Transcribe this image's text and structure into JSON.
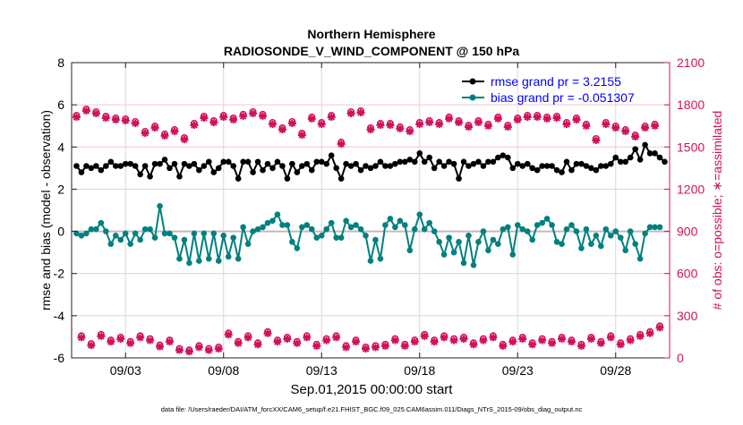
{
  "chart_data": {
    "type": "line",
    "title": "Northern Hemisphere",
    "subtitle": "RADIOSONDE_V_WIND_COMPONENT @ 150 hPa",
    "xlabel": "Sep.01,2015 00:00:00 start",
    "ylabel": "rmse and bias (model - observation)",
    "y2label": "# of obs: o=possible; ∗=assimilated",
    "footer": "data file: /Users/raeder/DAI/ATM_forcXX/CAM6_setup/f.e21.FHIST_BGC.f09_025.CAM6assim.011/Diags_NTrS_2015-09/obs_diag_output.nc",
    "x_units": "days since Aug.31,2015",
    "xlim": [
      0.25,
      30.75
    ],
    "ylim": [
      -6,
      8
    ],
    "y2lim": [
      0,
      2100
    ],
    "grid": true,
    "legend_position": "top-right",
    "xticks": [
      {
        "value": 3,
        "label": "09/03"
      },
      {
        "value": 8,
        "label": "09/08"
      },
      {
        "value": 13,
        "label": "09/13"
      },
      {
        "value": 18,
        "label": "09/18"
      },
      {
        "value": 23,
        "label": "09/23"
      },
      {
        "value": 28,
        "label": "09/28"
      }
    ],
    "yticks": [
      "-6",
      "-4",
      "-2",
      "0",
      "2",
      "4",
      "6",
      "8"
    ],
    "y2ticks": [
      "0",
      "300",
      "600",
      "900",
      "1200",
      "1500",
      "1800",
      "2100"
    ],
    "x_start": 0.5,
    "x_step": 0.25,
    "series": [
      {
        "name": "rmse grand pr = 3.2155",
        "color": "#000000",
        "values": [
          3.1,
          2.8,
          3.1,
          3.0,
          3.1,
          2.9,
          3.1,
          3.3,
          3.1,
          3.1,
          3.2,
          3.2,
          3.1,
          2.7,
          3.1,
          2.6,
          3.2,
          3.2,
          3.4,
          3.0,
          3.2,
          2.6,
          3.2,
          3.1,
          3.2,
          2.9,
          3.1,
          3.3,
          2.8,
          3.0,
          3.3,
          3.3,
          3.1,
          2.5,
          3.3,
          3.3,
          2.8,
          3.3,
          2.9,
          3.2,
          3.0,
          3.3,
          3.1,
          2.5,
          3.2,
          2.8,
          3.1,
          3.2,
          2.9,
          3.3,
          3.3,
          3.2,
          3.6,
          3.0,
          2.5,
          3.2,
          3.1,
          3.2,
          2.9,
          3.1,
          3.0,
          3.1,
          3.3,
          3.1,
          3.1,
          3.2,
          3.3,
          3.3,
          3.4,
          3.3,
          3.7,
          3.3,
          3.5,
          3.0,
          3.3,
          3.1,
          3.3,
          3.2,
          2.5,
          3.3,
          3.1,
          3.2,
          3.3,
          3.1,
          3.3,
          3.3,
          3.5,
          3.6,
          3.5,
          3.0,
          3.2,
          3.1,
          3.2,
          3.0,
          2.9,
          3.1,
          3.1,
          3.1,
          2.9,
          2.8,
          3.3,
          2.9,
          3.2,
          3.2,
          3.1,
          3.0,
          2.9,
          3.1,
          3.1,
          3.2,
          3.5,
          3.3,
          3.3,
          3.5,
          3.9,
          3.4,
          4.1,
          3.7,
          3.7,
          3.5,
          3.3
        ]
      },
      {
        "name": "bias grand pr = -0.051307",
        "color": "#008080",
        "values": [
          -0.1,
          -0.2,
          -0.1,
          0.1,
          0.1,
          0.4,
          0.0,
          -0.6,
          -0.2,
          -0.4,
          -0.1,
          -0.6,
          -0.1,
          -0.4,
          0.1,
          0.1,
          -0.3,
          1.2,
          -0.1,
          -0.1,
          -0.3,
          -1.3,
          -0.4,
          -1.5,
          -0.1,
          -1.4,
          -0.1,
          -1.3,
          -0.1,
          -1.4,
          -0.2,
          -1.2,
          -0.3,
          -1.3,
          0.2,
          -0.6,
          0.0,
          0.1,
          0.2,
          0.4,
          0.5,
          0.8,
          0.3,
          0.3,
          -0.5,
          -0.8,
          0.2,
          0.3,
          0.1,
          -0.3,
          -0.2,
          0.1,
          0.4,
          -0.3,
          -0.3,
          0.5,
          0.2,
          0.3,
          0.1,
          -0.2,
          -1.4,
          -0.4,
          -1.3,
          0.3,
          0.6,
          0.2,
          0.5,
          0.3,
          -0.9,
          0.1,
          0.8,
          0.1,
          0.4,
          0.0,
          -0.5,
          -1.1,
          -0.3,
          -1.0,
          -0.5,
          -1.5,
          -0.2,
          -1.6,
          -0.5,
          0.0,
          -0.9,
          -0.4,
          -0.6,
          0.1,
          0.2,
          -1.1,
          0.3,
          0.1,
          0.0,
          -0.4,
          0.3,
          0.4,
          0.6,
          0.3,
          -0.5,
          -0.6,
          0.1,
          0.3,
          0.0,
          -0.8,
          0.1,
          -0.6,
          -0.2,
          -0.7,
          0.1,
          -0.2,
          0.0,
          -0.3,
          -0.9,
          0.0,
          -0.6,
          -1.3,
          -0.1,
          0.2,
          0.2,
          0.2
        ]
      }
    ],
    "obs_counts": {
      "color": "#d2105a",
      "x_start_high": 0.5,
      "x_start_low": 0.75,
      "x_step": 0.5,
      "high": [
        1718,
        1763,
        1744,
        1712,
        1699,
        1693,
        1674,
        1604,
        1642,
        1585,
        1616,
        1559,
        1661,
        1712,
        1680,
        1718,
        1699,
        1725,
        1744,
        1725,
        1667,
        1629,
        1674,
        1591,
        1706,
        1667,
        1718,
        1527,
        1744,
        1750,
        1629,
        1661,
        1661,
        1636,
        1616,
        1667,
        1680,
        1667,
        1706,
        1680,
        1648,
        1680,
        1655,
        1706,
        1648,
        1699,
        1718,
        1718,
        1706,
        1712,
        1667,
        1699,
        1655,
        1553,
        1667,
        1642,
        1616,
        1578,
        1642,
        1655
      ],
      "low": [
        150,
        95,
        160,
        120,
        140,
        110,
        150,
        130,
        85,
        120,
        60,
        50,
        80,
        60,
        70,
        170,
        110,
        150,
        100,
        180,
        120,
        140,
        110,
        150,
        90,
        130,
        150,
        80,
        120,
        70,
        80,
        90,
        130,
        90,
        120,
        160,
        120,
        150,
        130,
        140,
        100,
        130,
        150,
        90,
        120,
        140,
        100,
        130,
        110,
        140,
        120,
        90,
        140,
        110,
        150,
        100,
        130,
        160,
        180,
        220
      ]
    }
  }
}
